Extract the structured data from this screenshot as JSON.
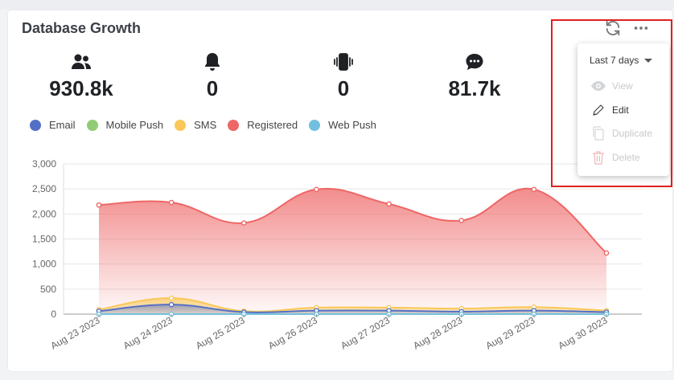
{
  "card": {
    "title": "Database Growth"
  },
  "header_icons": [
    "refresh-icon",
    "more-horizontal-icon"
  ],
  "stats": [
    {
      "icon": "users-icon",
      "value": "930.8k"
    },
    {
      "icon": "bell-icon",
      "value": "0"
    },
    {
      "icon": "vibrating-phone-icon",
      "value": "0"
    },
    {
      "icon": "chat-bubble-icon",
      "value": "81.7k"
    }
  ],
  "legend": [
    {
      "label": "Email",
      "color": "#5470c6"
    },
    {
      "label": "Mobile Push",
      "color": "#91cc75"
    },
    {
      "label": "SMS",
      "color": "#fac858"
    },
    {
      "label": "Registered",
      "color": "#ee6666"
    },
    {
      "label": "Web Push",
      "color": "#73c0de"
    }
  ],
  "menu": {
    "selected_range": "Last 7 days",
    "items": [
      {
        "label": "View",
        "icon": "eye-icon",
        "enabled": false
      },
      {
        "label": "Edit",
        "icon": "pencil-icon",
        "enabled": true
      },
      {
        "label": "Duplicate",
        "icon": "copy-icon",
        "enabled": false
      },
      {
        "label": "Delete",
        "icon": "trash-icon",
        "enabled": false
      }
    ]
  },
  "chart_data": {
    "type": "area",
    "categories": [
      "Aug 23 2023",
      "Aug 24 2023",
      "Aug 25 2023",
      "Aug 26 2023",
      "Aug 27 2023",
      "Aug 28 2023",
      "Aug 29 2023",
      "Aug 30 2023"
    ],
    "ylim": [
      0,
      3000
    ],
    "yticks": [
      "0",
      "500",
      "1,000",
      "1,500",
      "2,000",
      "2,500",
      "3,000"
    ],
    "grid": true,
    "series": [
      {
        "name": "Registered",
        "color": "#ee6666",
        "values": [
          2180,
          2230,
          1820,
          2490,
          2200,
          1870,
          2490,
          1220
        ]
      },
      {
        "name": "SMS",
        "color": "#fac858",
        "values": [
          90,
          320,
          60,
          130,
          130,
          110,
          140,
          70
        ]
      },
      {
        "name": "Email",
        "color": "#5470c6",
        "values": [
          60,
          190,
          40,
          70,
          70,
          50,
          70,
          40
        ]
      },
      {
        "name": "Mobile Push",
        "color": "#91cc75",
        "values": [
          0,
          0,
          0,
          0,
          0,
          0,
          0,
          0
        ]
      },
      {
        "name": "Web Push",
        "color": "#73c0de",
        "values": [
          0,
          0,
          0,
          0,
          0,
          0,
          0,
          0
        ]
      }
    ]
  }
}
